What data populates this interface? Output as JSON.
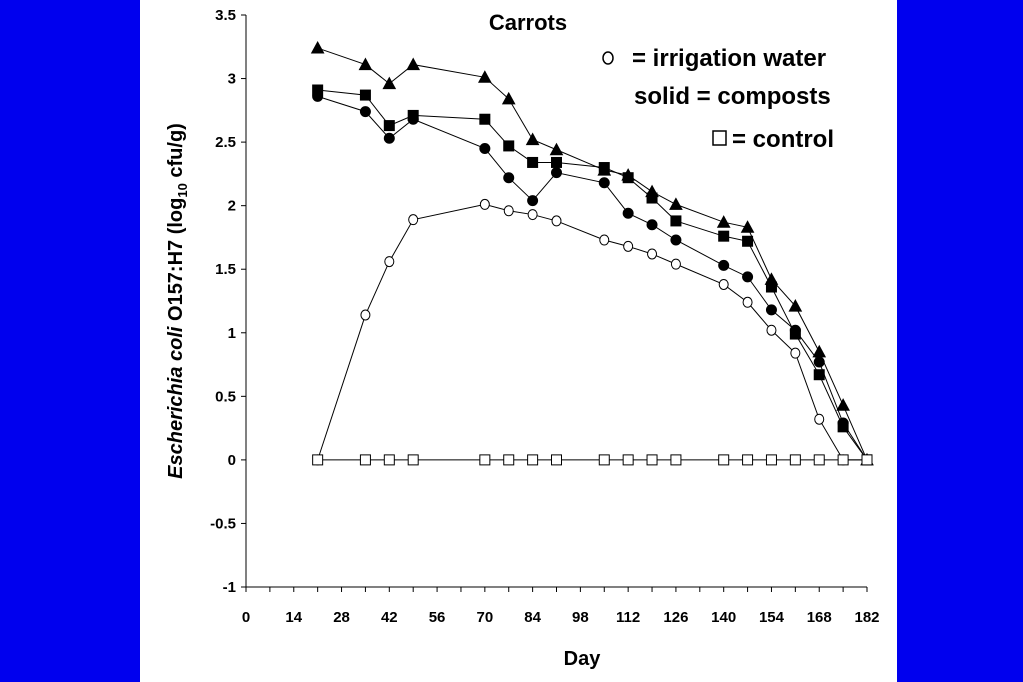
{
  "background_color": "#0000ee",
  "chart_data": {
    "type": "line",
    "title": "Carrots",
    "xlabel": "Day",
    "ylabel": {
      "italic": "Escherichia coli",
      "main": " O157:H7 (log",
      "sub": "10",
      "tail": " cfu/g)"
    },
    "xlim": [
      0,
      182
    ],
    "ylim": [
      -1,
      3.5
    ],
    "x_ticks": [
      "0",
      "14",
      "28",
      "42",
      "56",
      "70",
      "84",
      "98",
      "112",
      "126",
      "140",
      "154",
      "168",
      "182"
    ],
    "x_tick_values": [
      0,
      14,
      28,
      42,
      56,
      70,
      84,
      98,
      112,
      126,
      140,
      154,
      168,
      182
    ],
    "y_ticks": [
      "-1",
      "-0.5",
      "0",
      "0.5",
      "1",
      "1.5",
      "2",
      "2.5",
      "3",
      "3.5"
    ],
    "y_tick_values": [
      -1,
      -0.5,
      0,
      0.5,
      1,
      1.5,
      2,
      2.5,
      3,
      3.5
    ],
    "legend": [
      {
        "symbol": "circle-open",
        "text": " = irrigation water"
      },
      {
        "symbol": "none",
        "text": "solid = composts"
      },
      {
        "symbol": "square-open",
        "text": " = control"
      }
    ],
    "series": [
      {
        "marker": "triangle",
        "filled": true,
        "x": [
          21,
          35,
          42,
          49,
          70,
          77,
          84,
          91,
          105,
          112,
          119,
          126,
          140,
          147,
          154,
          161,
          168,
          175,
          182
        ],
        "y": [
          3.24,
          3.11,
          2.96,
          3.11,
          3.01,
          2.84,
          2.52,
          2.44,
          2.28,
          2.24,
          2.11,
          2.01,
          1.87,
          1.83,
          1.42,
          1.21,
          0.85,
          0.43,
          0.0
        ]
      },
      {
        "marker": "square",
        "filled": true,
        "x": [
          21,
          35,
          42,
          49,
          70,
          77,
          84,
          91,
          105,
          112,
          119,
          126,
          140,
          147,
          154,
          161,
          168,
          175,
          182
        ],
        "y": [
          2.91,
          2.87,
          2.63,
          2.71,
          2.68,
          2.47,
          2.34,
          2.34,
          2.3,
          2.22,
          2.06,
          1.88,
          1.76,
          1.72,
          1.36,
          0.99,
          0.67,
          0.26,
          0.0
        ]
      },
      {
        "marker": "circle",
        "filled": true,
        "x": [
          21,
          35,
          42,
          49,
          70,
          77,
          84,
          91,
          105,
          112,
          119,
          126,
          140,
          147,
          154,
          161,
          168,
          175,
          182
        ],
        "y": [
          2.86,
          2.74,
          2.53,
          2.68,
          2.45,
          2.22,
          2.04,
          2.26,
          2.18,
          1.94,
          1.85,
          1.73,
          1.53,
          1.44,
          1.18,
          1.02,
          0.77,
          0.29,
          0.0
        ]
      },
      {
        "marker": "circle",
        "filled": false,
        "x": [
          21,
          35,
          42,
          49,
          70,
          77,
          84,
          91,
          105,
          112,
          119,
          126,
          140,
          147,
          154,
          161,
          168,
          175,
          182
        ],
        "y": [
          0.0,
          1.14,
          1.56,
          1.89,
          2.01,
          1.96,
          1.93,
          1.88,
          1.73,
          1.68,
          1.62,
          1.54,
          1.38,
          1.24,
          1.02,
          0.84,
          0.32,
          0.0,
          0.0
        ]
      },
      {
        "marker": "square",
        "filled": false,
        "x": [
          21,
          35,
          42,
          49,
          70,
          77,
          84,
          91,
          105,
          112,
          119,
          126,
          140,
          147,
          154,
          161,
          168,
          175,
          182
        ],
        "y": [
          0,
          0,
          0,
          0,
          0,
          0,
          0,
          0,
          0,
          0,
          0,
          0,
          0,
          0,
          0,
          0,
          0,
          0,
          0
        ]
      }
    ]
  }
}
